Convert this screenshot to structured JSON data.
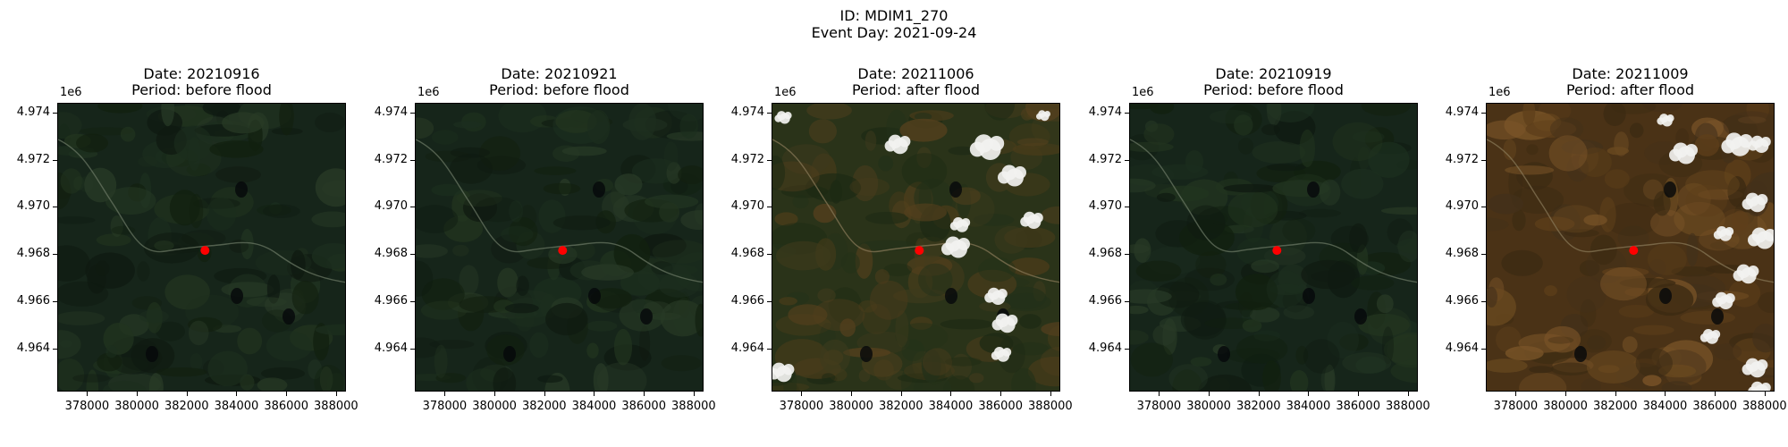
{
  "figure": {
    "id_line": "ID: MDIM1_270",
    "event_line": "Event Day: 2021-09-24"
  },
  "axes": {
    "offset_label": "1e6",
    "y_ticks": [
      "4.974",
      "4.972",
      "4.970",
      "4.968",
      "4.966",
      "4.964"
    ],
    "y_values": [
      4.974,
      4.972,
      4.97,
      4.968,
      4.966,
      4.964
    ],
    "y_range": [
      4.9622,
      4.9744
    ],
    "x_ticks": [
      "378000",
      "380000",
      "382000",
      "384000",
      "386000",
      "388000"
    ],
    "x_values": [
      378000,
      380000,
      382000,
      384000,
      386000,
      388000
    ],
    "x_range": [
      376800,
      388400
    ]
  },
  "marker": {
    "x": 382700,
    "y": 4.9682,
    "color": "#ff0000"
  },
  "panels": [
    {
      "date": "Date: 20210916",
      "period": "Period: before flood",
      "style": "green"
    },
    {
      "date": "Date: 20210921",
      "period": "Period: before flood",
      "style": "green"
    },
    {
      "date": "Date: 20211006",
      "period": "Period: after flood",
      "style": "mixed-cloud"
    },
    {
      "date": "Date: 20210919",
      "period": "Period: before flood",
      "style": "green"
    },
    {
      "date": "Date: 20211009",
      "period": "Period: after flood",
      "style": "brown-cloud"
    }
  ]
}
